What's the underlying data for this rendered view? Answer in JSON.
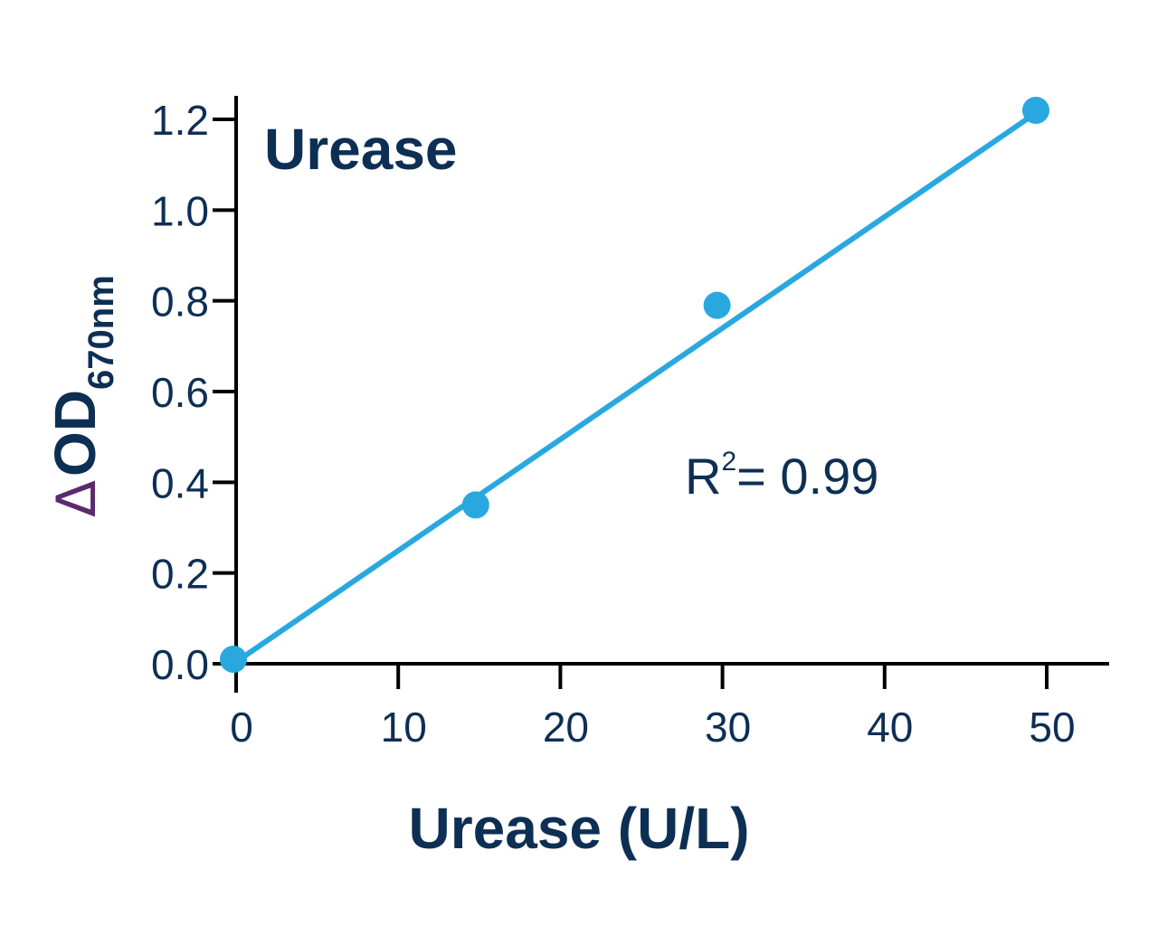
{
  "chart_data": {
    "type": "scatter",
    "title": "Urease",
    "xlabel": "Urease (U/L)",
    "ylabel": "ΔOD670nm",
    "ylabel_parts": {
      "delta": "Δ",
      "main": "OD",
      "sub": "670nm"
    },
    "xlim": [
      0,
      54
    ],
    "ylim": [
      0,
      1.25
    ],
    "x_ticks": [
      0,
      10,
      20,
      30,
      40,
      50
    ],
    "x_tick_labels": [
      "0",
      "10",
      "20",
      "30",
      "40",
      "50"
    ],
    "y_ticks": [
      0.0,
      0.2,
      0.4,
      0.6,
      0.8,
      1.0,
      1.2
    ],
    "y_tick_labels": [
      "0.0",
      "0.2",
      "0.4",
      "0.6",
      "0.8",
      "1.0",
      "1.2"
    ],
    "grid": false,
    "legend": null,
    "series": [
      {
        "name": "Urease",
        "x": [
          0,
          15,
          30,
          50
        ],
        "y": [
          0.01,
          0.35,
          0.79,
          1.22
        ],
        "marker": "circle",
        "color": "#29a8e0"
      }
    ],
    "fit_line": {
      "type": "linear",
      "x": [
        0,
        50
      ],
      "y": [
        0.0,
        1.21
      ],
      "color": "#29a8e0"
    },
    "annotations": [
      {
        "text": "R2= 0.99",
        "base": "R",
        "sup": "2",
        "rest": "= 0.99",
        "x": 28,
        "y": 0.42
      }
    ]
  },
  "colors": {
    "text": "#0e2f54",
    "delta": "#5a2a6e",
    "series": "#29a8e0",
    "axis": "#000000"
  }
}
